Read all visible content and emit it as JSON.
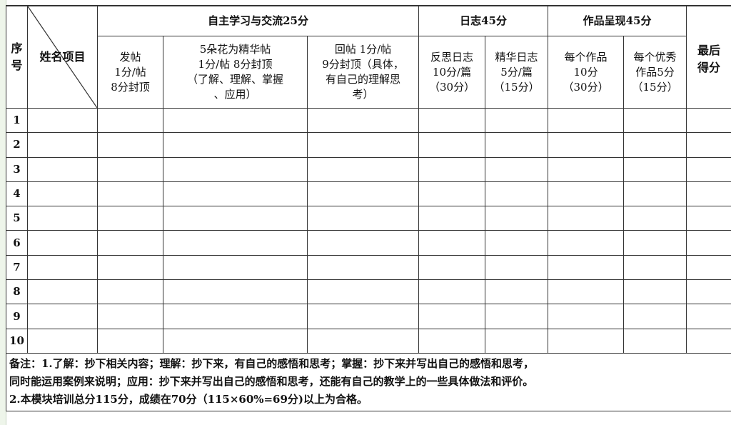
{
  "header": {
    "seq": "序号",
    "name_item": "姓名项目",
    "group_self_study": "自主学习与交流25分",
    "group_journal": "日志45分",
    "group_works": "作品呈现45分",
    "final_score": "最后得分",
    "sub": [
      {
        "lines": [
          "发帖",
          "1分/帖",
          "8分封顶"
        ]
      },
      {
        "lines": [
          "5朵花为精华帖",
          "1分/帖 8分封顶",
          "（了解、理解、掌握",
          "、应用）"
        ]
      },
      {
        "lines": [
          "回帖 1分/帖",
          "9分封顶（具体，",
          "有自己的理解思",
          "考）"
        ]
      },
      {
        "lines": [
          "反思日志",
          "10分/篇",
          "（30分）"
        ]
      },
      {
        "lines": [
          "精华日志",
          "5分/篇",
          "（15分）"
        ]
      },
      {
        "lines": [
          "每个作品",
          "10分",
          "（30分）"
        ]
      },
      {
        "lines": [
          "每个优秀",
          "作品5分",
          "（15分）"
        ]
      }
    ]
  },
  "rows": [
    "1",
    "2",
    "3",
    "4",
    "5",
    "6",
    "7",
    "8",
    "9",
    "10"
  ],
  "notes": [
    "备注：1.了解：抄下相关内容；理解：抄下来，有自己的感悟和思考；掌握：抄下来并写出自己的感悟和思考，",
    "同时能运用案例来说明；应用：抄下来并写出自己的感悟和思考，还能有自己的教学上的一些具体做法和评价。",
    "2.本模块培训总分115分，成绩在70分（115×60%=69分)以上为合格。"
  ]
}
